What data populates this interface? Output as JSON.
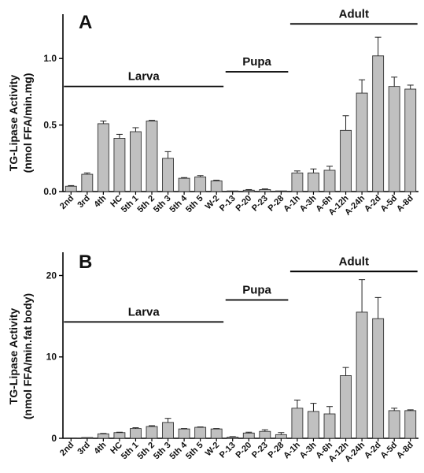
{
  "chart_data": [
    {
      "panel_label": "A",
      "type": "bar",
      "ylabel_line1": "TG-Lipase Activity",
      "ylabel_line2": "(nmol FFA/min.mg)",
      "yticks": [
        "0.0",
        "0.5",
        "1.0"
      ],
      "ytick_values": [
        0,
        0.5,
        1.0
      ],
      "ylim": [
        0,
        1.25
      ],
      "categories": [
        "2nd",
        "3rd",
        "4th",
        "HC",
        "5th 1",
        "5th 2",
        "5th 3",
        "5th 4",
        "5th 5",
        "W-2",
        "P-13",
        "P-20",
        "P-23",
        "P-28",
        "A-1h",
        "A-3h",
        "A-6h",
        "A-12h",
        "A-24h",
        "A-2d",
        "A-5d",
        "A-8d"
      ],
      "values": [
        0.04,
        0.13,
        0.51,
        0.4,
        0.45,
        0.53,
        0.25,
        0.1,
        0.11,
        0.08,
        0.005,
        0.01,
        0.015,
        0.005,
        0.14,
        0.14,
        0.16,
        0.46,
        0.74,
        1.02,
        0.79,
        0.77
      ],
      "errors": [
        0.005,
        0.01,
        0.02,
        0.03,
        0.03,
        0.005,
        0.05,
        0.005,
        0.01,
        0.005,
        0.0,
        0.005,
        0.005,
        0.0,
        0.015,
        0.03,
        0.03,
        0.11,
        0.1,
        0.14,
        0.07,
        0.03
      ],
      "stages": [
        {
          "label": "Larva",
          "from": 0,
          "to": 9,
          "level": 0.79
        },
        {
          "label": "Pupa",
          "from": 10,
          "to": 13,
          "level": 0.9
        },
        {
          "label": "Adult",
          "from": 14,
          "to": 21,
          "level": 1.26
        }
      ],
      "bar_color": "#c0c0c0",
      "grid": false
    },
    {
      "panel_label": "B",
      "type": "bar",
      "ylabel_line1": "TG-Lipase Activity",
      "ylabel_line2": "(nmol FFA/min.fat body)",
      "yticks": [
        "0",
        "10",
        "20"
      ],
      "ytick_values": [
        0,
        10,
        20
      ],
      "ylim": [
        0,
        21.5
      ],
      "categories": [
        "2nd",
        "3rd",
        "4th",
        "HC",
        "5th 1",
        "5th 2",
        "5th 3",
        "5th 4",
        "5th 5",
        "W-2",
        "P-13",
        "P-20",
        "P-23",
        "P-28",
        "A-1h",
        "A-3h",
        "A-6h",
        "A-12h",
        "A-24h",
        "A-2d",
        "A-5d",
        "A-8d"
      ],
      "values": [
        0.05,
        0.1,
        0.55,
        0.7,
        1.2,
        1.45,
        1.95,
        1.15,
        1.35,
        1.15,
        0.15,
        0.65,
        0.85,
        0.45,
        3.7,
        3.3,
        3.0,
        7.7,
        15.5,
        14.7,
        3.4,
        3.4
      ],
      "errors": [
        0.0,
        0.0,
        0.05,
        0.05,
        0.1,
        0.1,
        0.5,
        0.05,
        0.05,
        0.05,
        0.05,
        0.1,
        0.2,
        0.25,
        1.0,
        1.0,
        0.9,
        1.0,
        4.0,
        2.6,
        0.3,
        0.1
      ],
      "stages": [
        {
          "label": "Larva",
          "from": 0,
          "to": 9,
          "level": 14.3
        },
        {
          "label": "Pupa",
          "from": 10,
          "to": 13,
          "level": 17.0
        },
        {
          "label": "Adult",
          "from": 14,
          "to": 21,
          "level": 20.5
        }
      ],
      "bar_color": "#c0c0c0",
      "grid": false
    }
  ]
}
